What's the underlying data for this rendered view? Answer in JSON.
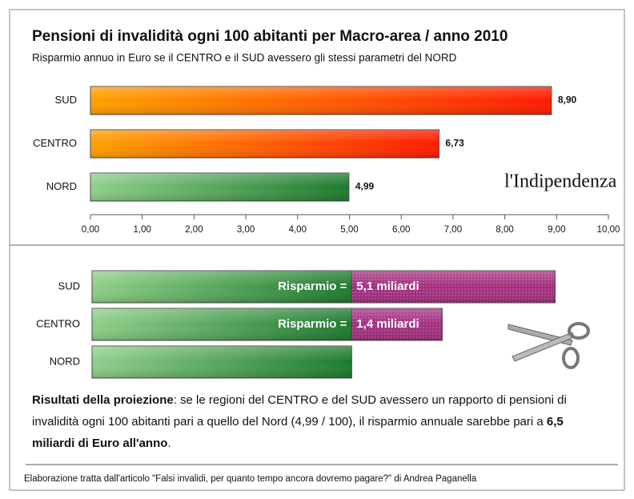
{
  "chart_data": [
    {
      "type": "bar",
      "orientation": "horizontal",
      "title": "Pensioni di invalidità ogni 100 abitanti per Macro-area / anno 2010",
      "subtitle": "Risparmio annuo in Euro se il CENTRO e il SUD avessero gli stessi parametri del NORD",
      "categories": [
        "SUD",
        "CENTRO",
        "NORD"
      ],
      "values": [
        8.9,
        6.73,
        4.99
      ],
      "value_labels": [
        "8,90",
        "6,73",
        "4,99"
      ],
      "colors": [
        "#ff3a0a",
        "#ff3a0a",
        "#2a8a3a"
      ],
      "xlim": [
        0,
        10
      ],
      "xticks": [
        {
          "value": 0,
          "label": "0,00"
        },
        {
          "value": 1,
          "label": "1,00"
        },
        {
          "value": 2,
          "label": "2,00"
        },
        {
          "value": 3,
          "label": "3,00"
        },
        {
          "value": 4,
          "label": "4,00"
        },
        {
          "value": 5,
          "label": "5,00"
        },
        {
          "value": 6,
          "label": "6,00"
        },
        {
          "value": 7,
          "label": "7,00"
        },
        {
          "value": 8,
          "label": "8,00"
        },
        {
          "value": 9,
          "label": "9,00"
        },
        {
          "value": 10,
          "label": "10,00"
        }
      ],
      "logo": "l'Indipendenza"
    },
    {
      "type": "stacked_bar",
      "orientation": "horizontal",
      "categories": [
        "SUD",
        "CENTRO",
        "NORD"
      ],
      "series": [
        {
          "color": "#2a8a3a",
          "values": [
            4.99,
            4.99,
            4.99
          ]
        },
        {
          "color": "#a02d7c",
          "values": [
            3.91,
            1.74,
            null
          ]
        }
      ],
      "xlim": [
        0,
        10
      ],
      "annotations": [
        {
          "category": "SUD",
          "text": "Risparmio =",
          "amount": "5,1 miliardi"
        },
        {
          "category": "CENTRO",
          "text": "Risparmio =",
          "amount": "1,4 miliardi"
        }
      ]
    }
  ],
  "note": [
    {
      "text": "Risultati della proiezione",
      "bold": true
    },
    {
      "text": ": se le regioni del CENTRO e del SUD avessero un rapporto di pensioni di invalidità ogni 100 abitanti pari a quello del Nord (4,99 / 100), il risparmio annuale sarebbe pari a ",
      "bold": false
    },
    {
      "text": "6,5 miliardi di Euro all'anno",
      "bold": true
    },
    {
      "text": ".",
      "bold": false
    }
  ],
  "source": "Elaborazione tratta dall'articolo \"Falsi invalidi, per quanto tempo ancora dovremo pagare?\" di Andrea Paganella"
}
